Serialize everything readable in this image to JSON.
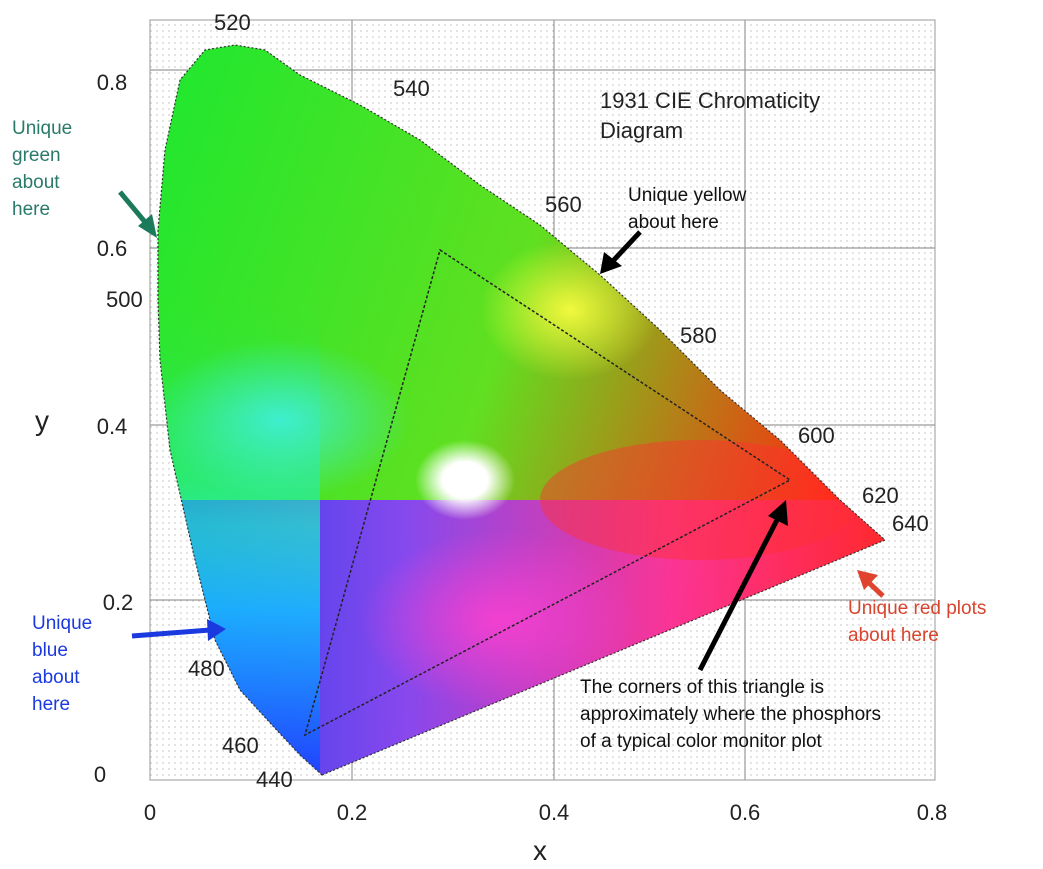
{
  "diagram": {
    "title_line1": "1931 CIE Chromaticity",
    "title_line2": "Diagram",
    "xlabel": "x",
    "ylabel": "y",
    "x_ticks": [
      "0",
      "0.2",
      "0.4",
      "0.6",
      "0.8"
    ],
    "y_ticks": [
      "0",
      "0.2",
      "0.4",
      "0.6",
      "0.8"
    ],
    "wavelengths": [
      "440",
      "460",
      "480",
      "500",
      "520",
      "540",
      "560",
      "580",
      "600",
      "620",
      "640"
    ],
    "annotations": {
      "green": [
        "Unique",
        "green",
        "about",
        "here"
      ],
      "blue": [
        "Unique",
        "blue",
        "about",
        "here"
      ],
      "yellow": [
        "Unique yellow",
        "about here"
      ],
      "red": [
        "Unique red plots",
        "about here"
      ],
      "triangle": [
        "The corners of this triangle is",
        "approximately where the phosphors",
        "of a typical color monitor plot"
      ]
    },
    "colors": {
      "green_arrow": "#1a7a5a",
      "blue_arrow": "#1a3adf",
      "red_arrow": "#e0442e",
      "red_text": "#d8442e",
      "black_arrow": "#000000"
    }
  }
}
